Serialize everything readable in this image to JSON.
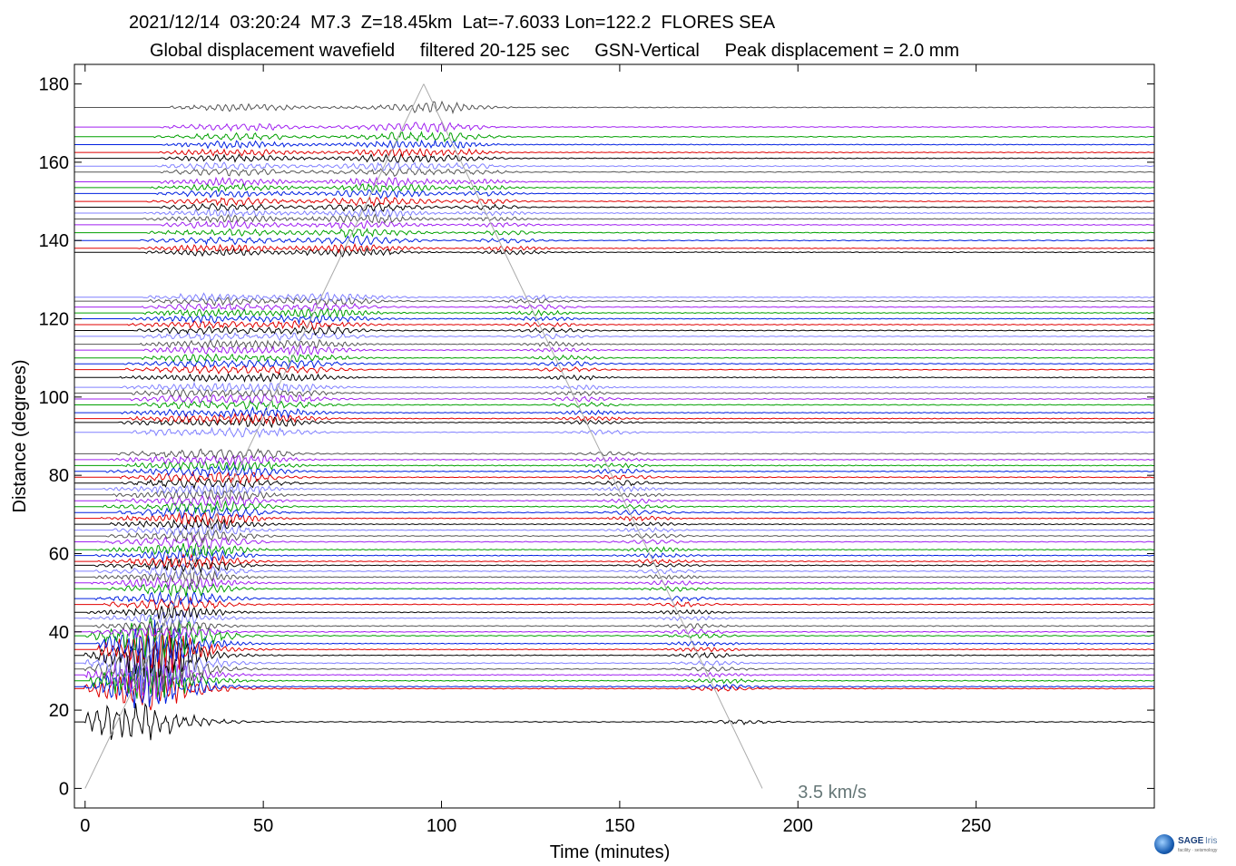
{
  "header": {
    "line1": "2021/12/14  03:20:24  M7.3  Z=18.45km  Lat=-7.6033 Lon=122.2  FLORES SEA",
    "line2": "Global displacement wavefield     filtered 20-125 sec     GSN-Vertical     Peak displacement = 2.0 mm"
  },
  "logo": {
    "sage": "SAGE",
    "iris": "Iris",
    "sub": "facility · seismology"
  },
  "chart_data": {
    "type": "line",
    "title": "Global displacement wavefield",
    "xlabel": "Time (minutes)",
    "ylabel": "Distance (degrees)",
    "xlim": [
      -3,
      300
    ],
    "ylim": [
      -5,
      185
    ],
    "xticks": [
      0,
      50,
      100,
      150,
      200,
      250
    ],
    "yticks": [
      0,
      20,
      40,
      60,
      80,
      100,
      120,
      140,
      160,
      180
    ],
    "grid": false,
    "annotation": "3.5 km/s",
    "series_colors": [
      "#000000",
      "#e00000",
      "#0020e0",
      "#00a000",
      "#a020f0",
      "#555555",
      "#8080ff"
    ],
    "trace_distances": [
      17,
      25.5,
      26,
      27.5,
      29,
      30.5,
      32,
      34,
      35.5,
      37,
      39,
      40,
      41.5,
      43.5,
      45,
      47,
      48.5,
      51,
      52.5,
      54,
      55.5,
      57,
      58,
      59.5,
      61,
      63,
      64.5,
      66,
      67.5,
      69,
      70.5,
      72,
      73.5,
      75,
      76.5,
      78,
      79.5,
      81,
      82.5,
      84,
      85.5,
      91,
      93.5,
      94.5,
      96,
      98,
      99.5,
      101,
      102.5,
      105,
      107,
      108.5,
      110,
      112,
      113.5,
      115.5,
      117,
      118.5,
      120,
      121.5,
      123,
      124.5,
      125.5,
      137,
      138,
      140,
      142,
      144,
      145.5,
      147,
      148.5,
      150,
      152,
      153.5,
      155,
      157.5,
      159,
      161,
      162.5,
      164.5,
      166.5,
      169,
      174
    ]
  }
}
